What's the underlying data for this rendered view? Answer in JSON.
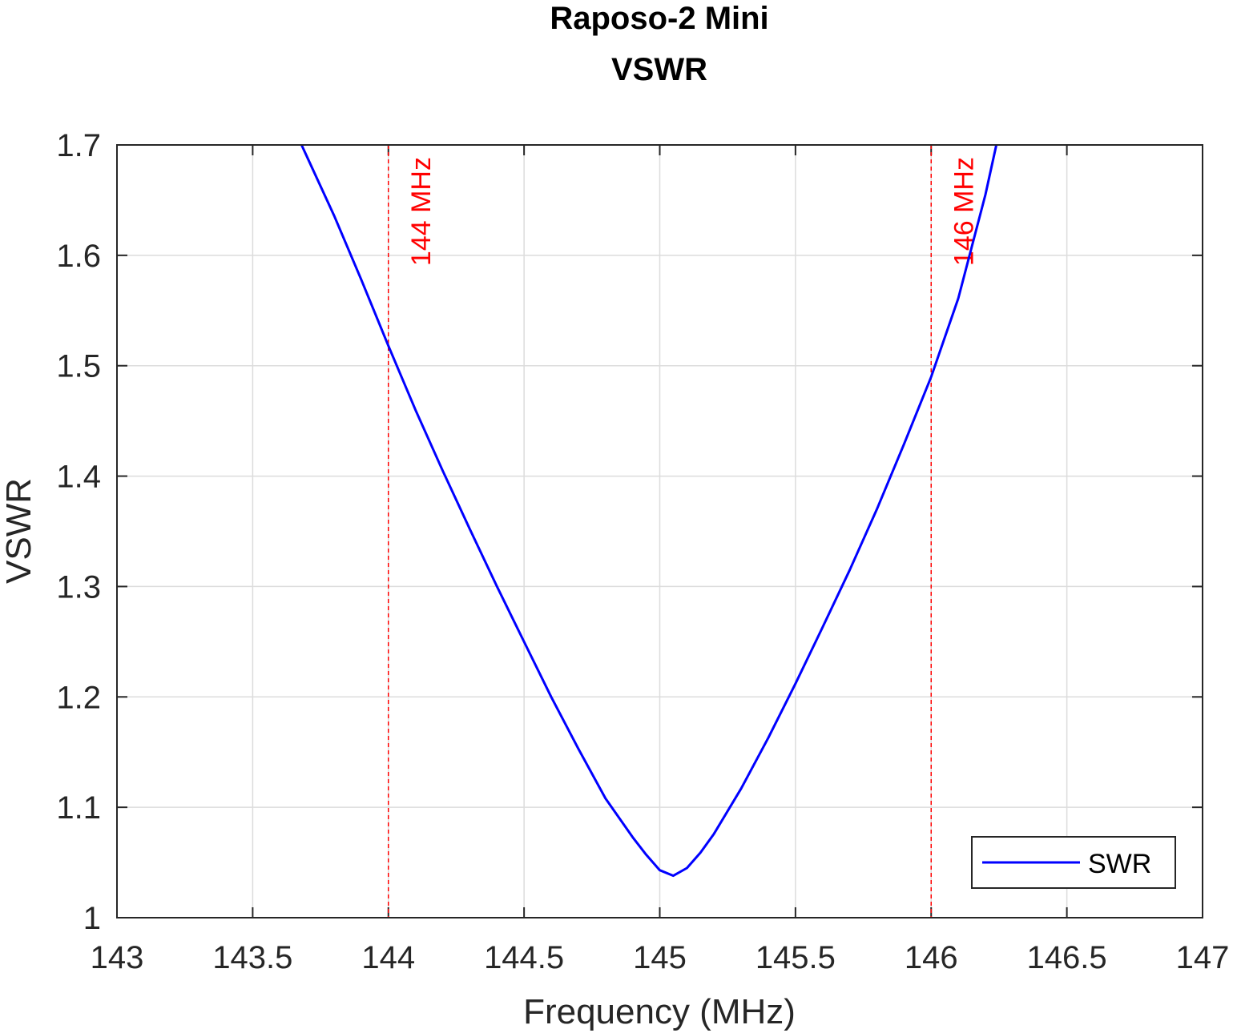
{
  "chart_data": {
    "type": "line",
    "title": "Raposo-2 Mini",
    "subtitle": "VSWR",
    "xlabel": "Frequency (MHz)",
    "ylabel": "VSWR",
    "xlim": [
      143,
      147
    ],
    "ylim": [
      1,
      1.7
    ],
    "xticks": [
      143,
      143.5,
      144,
      144.5,
      145,
      145.5,
      146,
      146.5,
      147
    ],
    "xtick_labels": [
      "143",
      "143.5",
      "144",
      "144.5",
      "145",
      "145.5",
      "146",
      "146.5",
      "147"
    ],
    "yticks": [
      1,
      1.1,
      1.2,
      1.3,
      1.4,
      1.5,
      1.6,
      1.7
    ],
    "ytick_labels": [
      "1",
      "1.1",
      "1.2",
      "1.3",
      "1.4",
      "1.5",
      "1.6",
      "1.7"
    ],
    "grid": true,
    "legend_position": "bottom-right",
    "series": [
      {
        "name": "SWR",
        "color": "#0000ff",
        "x": [
          143.68,
          143.8,
          143.9,
          144.0,
          144.1,
          144.2,
          144.3,
          144.4,
          144.5,
          144.6,
          144.7,
          144.8,
          144.9,
          144.95,
          145.0,
          145.05,
          145.1,
          145.15,
          145.2,
          145.3,
          145.4,
          145.5,
          145.6,
          145.7,
          145.8,
          145.9,
          146.0,
          146.1,
          146.2,
          146.24
        ],
        "y": [
          1.7,
          1.636,
          1.578,
          1.518,
          1.46,
          1.405,
          1.352,
          1.3,
          1.25,
          1.2,
          1.153,
          1.108,
          1.073,
          1.057,
          1.043,
          1.038,
          1.045,
          1.059,
          1.076,
          1.117,
          1.163,
          1.212,
          1.263,
          1.315,
          1.37,
          1.429,
          1.49,
          1.561,
          1.655,
          1.7
        ]
      }
    ],
    "vlines": [
      {
        "x": 144,
        "label": "144 MHz",
        "color": "#ff0000"
      },
      {
        "x": 146,
        "label": "146 MHz",
        "color": "#ff0000"
      }
    ]
  }
}
